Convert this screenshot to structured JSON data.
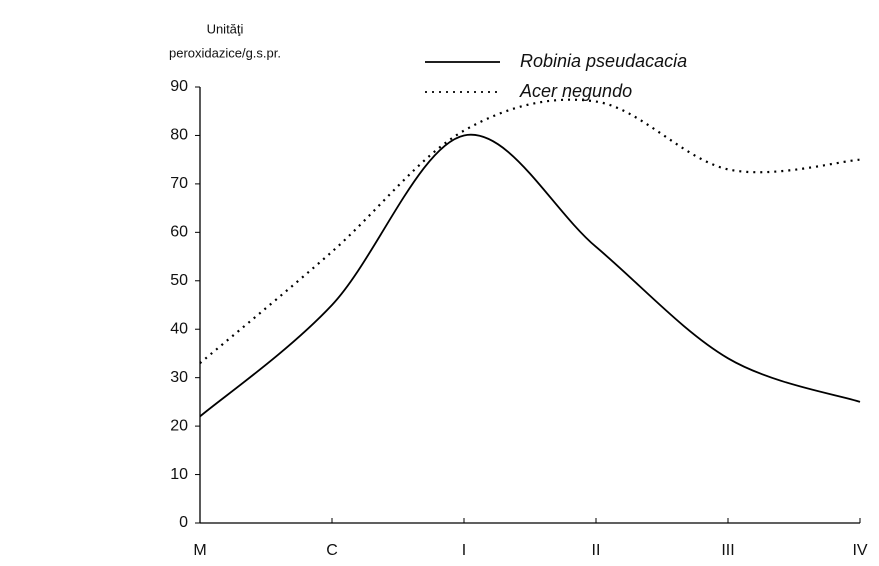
{
  "chart_data": {
    "type": "line",
    "ylabel": [
      "Unităţi",
      "peroxidazice/g.s.pr."
    ],
    "categories": [
      "M",
      "C",
      "I",
      "II",
      "III",
      "IV"
    ],
    "series": [
      {
        "name": "Robinia pseudacacia",
        "color": "#000000",
        "style": "solid",
        "values": [
          22,
          45,
          80,
          57,
          34,
          25
        ]
      },
      {
        "name": "Acer negundo",
        "color": "#000000",
        "style": "dotted",
        "values": [
          33,
          56,
          81,
          87,
          73,
          75
        ]
      }
    ],
    "ylim": [
      0,
      90
    ],
    "yticks": [
      0,
      10,
      20,
      30,
      40,
      50,
      60,
      70,
      80,
      90
    ],
    "grid": false
  }
}
